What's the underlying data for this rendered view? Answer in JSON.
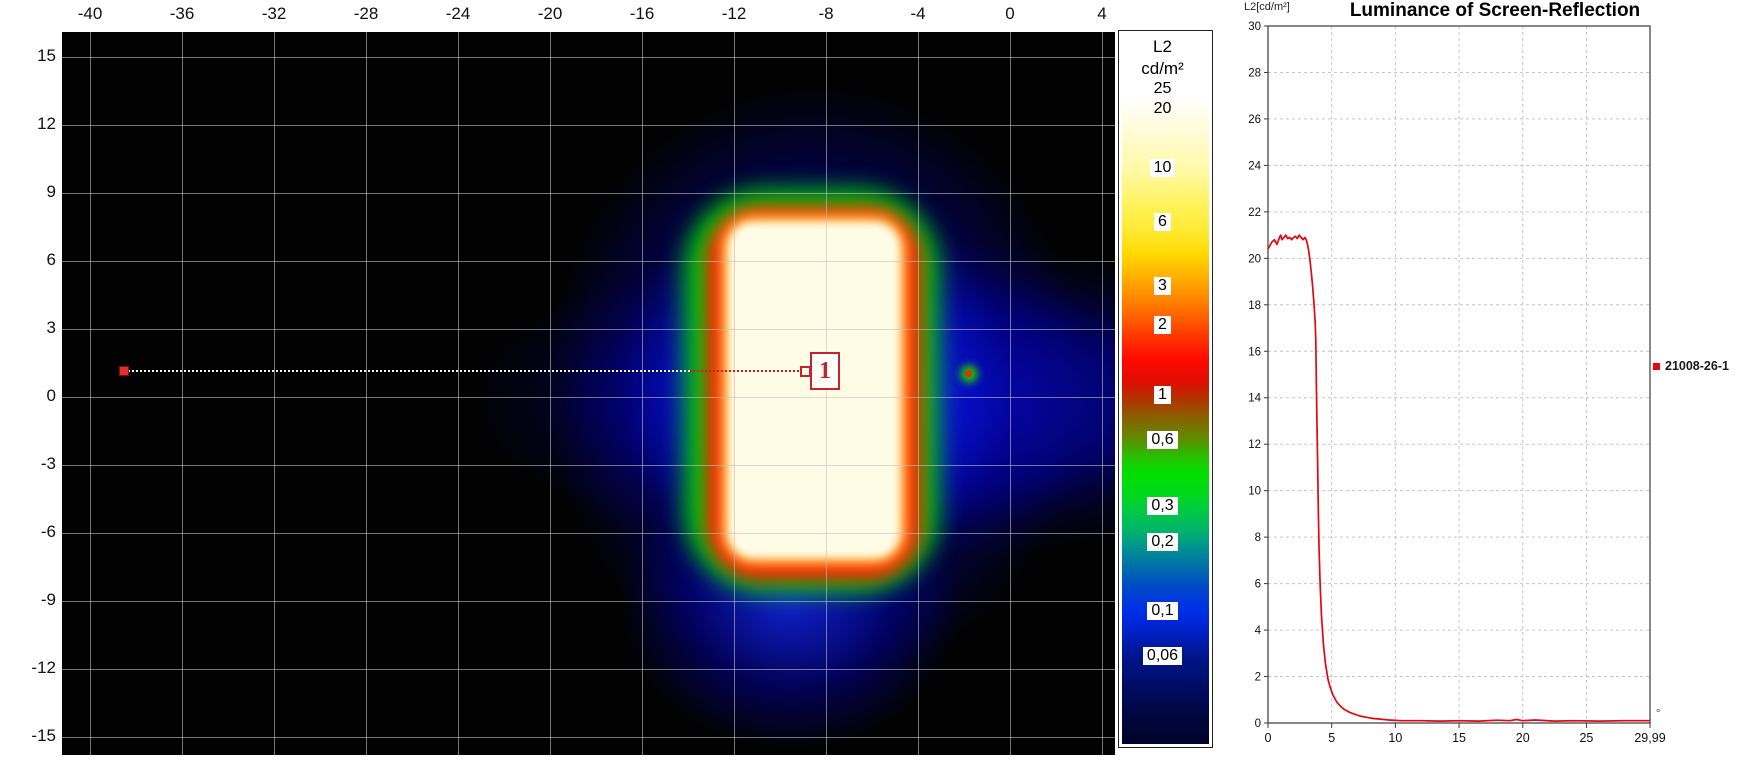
{
  "heatmap": {
    "x_tick_labels": [
      "-40",
      "-36",
      "-32",
      "-28",
      "-24",
      "-20",
      "-16",
      "-12",
      "-8",
      "-4",
      "0",
      "4"
    ],
    "y_tick_labels": [
      "15",
      "12",
      "9",
      "6",
      "3",
      "0",
      "-3",
      "-6",
      "-9",
      "-12",
      "-15"
    ],
    "marker": {
      "label": "1"
    },
    "colors": {
      "background": "#000000",
      "grid": "#c3c3c3",
      "core": "#fffce6",
      "ring_red": "#ff1500",
      "ring_green": "#00cf00",
      "glow_blue": "#0a10e1"
    }
  },
  "colorbar": {
    "title_line1": "L2",
    "title_line2": "cd/m²",
    "ticks": [
      {
        "label": "25",
        "pos": 8.0,
        "chip": false
      },
      {
        "label": "20",
        "pos": 10.8,
        "chip": false
      },
      {
        "label": "10",
        "pos": 19.2,
        "chip": true
      },
      {
        "label": "6",
        "pos": 26.7,
        "chip": true
      },
      {
        "label": "3",
        "pos": 35.8,
        "chip": true
      },
      {
        "label": "2",
        "pos": 41.3,
        "chip": true
      },
      {
        "label": "1",
        "pos": 51.1,
        "chip": true
      },
      {
        "label": "0,6",
        "pos": 57.4,
        "chip": true
      },
      {
        "label": "0,3",
        "pos": 66.8,
        "chip": true
      },
      {
        "label": "0,2",
        "pos": 71.8,
        "chip": true
      },
      {
        "label": "0,1",
        "pos": 81.6,
        "chip": true
      },
      {
        "label": "0,06",
        "pos": 87.9,
        "chip": true
      }
    ]
  },
  "chart_data": {
    "type": "line",
    "title": "Luminance of Screen-Reflection",
    "ylabel": "L2[cd/m²]",
    "x_unit": "°",
    "xlim": [
      0,
      29.99
    ],
    "ylim": [
      0,
      30
    ],
    "x_tick_values": [
      0,
      5,
      10,
      15,
      20,
      25,
      29.99
    ],
    "x_tick_labels": [
      "0",
      "5",
      "10",
      "15",
      "20",
      "25",
      "29,99"
    ],
    "y_tick_step": 2,
    "grid": "dashed",
    "legend_position": "right",
    "series": [
      {
        "name": "21008-26-1",
        "color": "#e30613",
        "x": [
          0,
          0.15,
          0.3,
          0.5,
          0.7,
          0.9,
          1.0,
          1.1,
          1.25,
          1.4,
          1.55,
          1.7,
          1.85,
          2.0,
          2.15,
          2.3,
          2.45,
          2.6,
          2.75,
          2.9,
          3.0,
          3.1,
          3.2,
          3.3,
          3.4,
          3.5,
          3.6,
          3.7,
          3.75,
          3.8,
          3.85,
          3.9,
          3.95,
          4.0,
          4.1,
          4.2,
          4.35,
          4.5,
          4.7,
          4.9,
          5.1,
          5.4,
          5.7,
          6.0,
          6.4,
          6.8,
          7.2,
          7.7,
          8.2,
          8.8,
          9.5,
          10.5,
          12,
          13.5,
          15,
          16.5,
          18,
          19,
          19.5,
          20,
          21,
          22.5,
          24,
          26,
          28,
          29.99
        ],
        "y": [
          20.4,
          20.55,
          20.7,
          20.8,
          20.6,
          20.9,
          21.0,
          20.8,
          20.9,
          21.0,
          20.85,
          20.9,
          20.8,
          20.9,
          20.95,
          20.85,
          21.0,
          20.9,
          20.8,
          20.9,
          20.8,
          20.6,
          20.3,
          19.9,
          19.4,
          18.8,
          18.1,
          17.3,
          16.5,
          14.5,
          12.8,
          11.0,
          9.2,
          7.6,
          5.9,
          4.6,
          3.4,
          2.6,
          1.9,
          1.5,
          1.2,
          0.9,
          0.72,
          0.58,
          0.46,
          0.38,
          0.3,
          0.25,
          0.2,
          0.17,
          0.13,
          0.1,
          0.1,
          0.08,
          0.1,
          0.08,
          0.12,
          0.1,
          0.15,
          0.1,
          0.13,
          0.08,
          0.1,
          0.08,
          0.1,
          0.1
        ]
      }
    ]
  }
}
